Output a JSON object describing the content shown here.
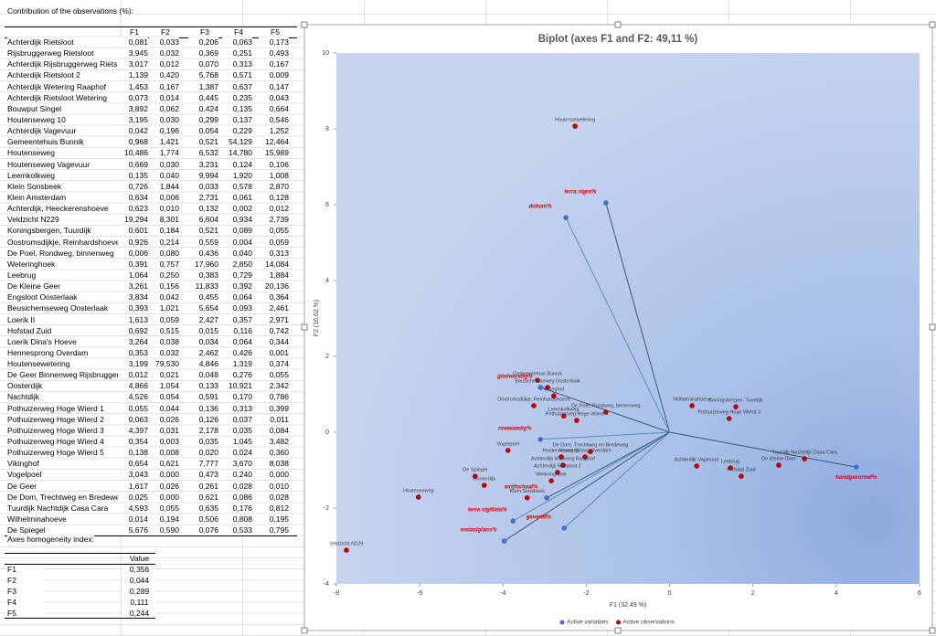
{
  "sheet": {
    "title": "Contribution of the observations (%):",
    "headers": [
      "F1",
      "F2",
      "F3",
      "F4",
      "F5"
    ],
    "rows": [
      [
        "Achterdijk Rietsloot",
        "0,081",
        "0,033",
        "0,206",
        "0,063",
        "0,173"
      ],
      [
        "Rijsbruggerweg Rietsloot",
        "3,945",
        "0,032",
        "0,369",
        "0,251",
        "0,493"
      ],
      [
        "Achterdijk Rijsbruggerweg Rietsl",
        "3,017",
        "0,012",
        "0,070",
        "0,313",
        "0,167"
      ],
      [
        "Achterdijk Rietsloot 2",
        "1,139",
        "0,420",
        "5,768",
        "0,571",
        "0,009"
      ],
      [
        "Achterdijk Wetering Raaphof",
        "1,453",
        "0,167",
        "1,387",
        "0,637",
        "0,147"
      ],
      [
        "Achterdijk Rietsloot Wetering",
        "0,073",
        "0,014",
        "0,445",
        "0,235",
        "0,043"
      ],
      [
        "Bouwput Singel",
        "3,892",
        "0,062",
        "0,424",
        "0,135",
        "0,664"
      ],
      [
        "Houtenseweg 10",
        "3,195",
        "0,030",
        "0,299",
        "0,137",
        "0,546"
      ],
      [
        "Achterdijk Vagevuur",
        "0,042",
        "0,196",
        "0,054",
        "0,229",
        "1,252"
      ],
      [
        "Gemeentehuis Bunnik",
        "0,968",
        "1,421",
        "0,521",
        "54,129",
        "12,464"
      ],
      [
        "Houtenseweg",
        "10,486",
        "1,774",
        "6,532",
        "14,780",
        "15,989"
      ],
      [
        "Houtenseweg Vagevuur",
        "0,669",
        "0,030",
        "3,231",
        "0,124",
        "0,106"
      ],
      [
        "Leemkolkweg",
        "0,135",
        "0,040",
        "9,994",
        "1,920",
        "1,008"
      ],
      [
        "Klein Sonsbeek",
        "0,726",
        "1,844",
        "0,033",
        "0,578",
        "2,870"
      ],
      [
        "Klein Amsterdam",
        "0,634",
        "0,006",
        "2,731",
        "0,061",
        "0,128"
      ],
      [
        "Achterdijk, Heeckerenshoeve",
        "0,623",
        "0,010",
        "0,132",
        "0,002",
        "0,012"
      ],
      [
        "Veldzicht  N229",
        "19,294",
        "8,301",
        "6,604",
        "0,934",
        "2,739"
      ],
      [
        "Koningsbergen, Tuurdijk",
        "0,601",
        "0,184",
        "0,521",
        "0,089",
        "0,055"
      ],
      [
        "Oostromsdijkje, Reinhardshoeve",
        "0,926",
        "0,214",
        "0,559",
        "0,004",
        "0,059"
      ],
      [
        "De Poel, Rondweg, binnenweg",
        "0,006",
        "0,080",
        "0,436",
        "0,040",
        "0,313"
      ],
      [
        "Weteringhoek",
        "0,391",
        "0,757",
        "17,960",
        "2,850",
        "14,084"
      ],
      [
        "Leebrug",
        "1,064",
        "0,250",
        "0,383",
        "0,729",
        "1,884"
      ],
      [
        "De Kleine Geer",
        "3,261",
        "0,156",
        "11,833",
        "0,392",
        "20,136"
      ],
      [
        "Engsloot Oosterlaak",
        "3,834",
        "0,042",
        "0,455",
        "0,064",
        "0,364"
      ],
      [
        "Beusichemseweg Oosterlaak",
        "0,393",
        "1,021",
        "5,654",
        "0,093",
        "2,461"
      ],
      [
        "Loerik II",
        "1,613",
        "0,059",
        "2,427",
        "0,357",
        "2,971"
      ],
      [
        "Hofstad Zuid",
        "0,692",
        "0,515",
        "0,015",
        "0,116",
        "0,742"
      ],
      [
        "Loerik Dina's Hoeve",
        "3,264",
        "0,038",
        "0,034",
        "0,064",
        "0,344"
      ],
      [
        "Hennesprong Overdam",
        "0,353",
        "0,032",
        "2,462",
        "0,426",
        "0,001"
      ],
      [
        "Houtensewetering",
        "3,199",
        "79,530",
        "4,846",
        "1,319",
        "0,374"
      ],
      [
        "De Geer Binnenweg Rijsbruggerw",
        "0,012",
        "0,021",
        "0,048",
        "0,276",
        "0,055"
      ],
      [
        "Oosterdijk",
        "4,866",
        "1,054",
        "0,133",
        "10,921",
        "2,342"
      ],
      [
        "Nachtdijk",
        "4,526",
        "0,054",
        "0,591",
        "0,170",
        "0,786"
      ],
      [
        "Pothuizerweg Hoge Wierd 1",
        "0,055",
        "0,044",
        "0,136",
        "0,313",
        "0,399"
      ],
      [
        "Pothuizerweg Hoge Wierd 2",
        "0,063",
        "0,026",
        "0,126",
        "0,037",
        "0,011"
      ],
      [
        "Pothuizerweg Hoge Wierd 3",
        "4,397",
        "0,031",
        "2,178",
        "0,035",
        "0,084"
      ],
      [
        "Pothuizerweg Hoge Wierd 4",
        "0,354",
        "0,003",
        "0,035",
        "1,045",
        "3,482"
      ],
      [
        "Pothuizerweg Hoge Wierd 5",
        "0,138",
        "0,008",
        "0,020",
        "0,024",
        "0,360"
      ],
      [
        "Vikinghof",
        "0,654",
        "0,621",
        "7,777",
        "3,670",
        "8,038"
      ],
      [
        "Vogelpoel",
        "3,043",
        "0,000",
        "0,473",
        "0,240",
        "0,000"
      ],
      [
        "De Geer",
        "1,617",
        "0,026",
        "0,261",
        "0,028",
        "0,010"
      ],
      [
        "De Dom, Trechtweg en Bredeweg",
        "0,025",
        "0,000",
        "0,621",
        "0,086",
        "0,028"
      ],
      [
        "Tuurdijk Nachtdijk Casa Cara",
        "4,593",
        "0,055",
        "0,635",
        "0,176",
        "0,812"
      ],
      [
        "Wilhelminahoeve",
        "0,014",
        "0,194",
        "0,506",
        "0,808",
        "0,195"
      ],
      [
        "De Spiegel",
        "5,676",
        "0,590",
        "0,076",
        "0,533",
        "0,795"
      ]
    ],
    "homogeneity": {
      "title": "Axes homogeneity index:",
      "header": "Value",
      "rows": [
        [
          "F1",
          "0,356"
        ],
        [
          "F2",
          "0,044"
        ],
        [
          "F3",
          "0,289"
        ],
        [
          "F4",
          "0,111"
        ],
        [
          "F5",
          "0,244"
        ]
      ]
    }
  },
  "chart_data": {
    "type": "biplot",
    "title": "Biplot (axes F1 and F2: 49,11 %)",
    "x_label": "F1 (32,49 %)",
    "y_label": "F2 (16,62 %)",
    "xlim": [
      -8,
      6
    ],
    "ylim": [
      -4,
      10
    ],
    "xticks": [
      -8,
      -6,
      -4,
      -2,
      0,
      2,
      4,
      6
    ],
    "yticks": [
      -4,
      -2,
      0,
      2,
      4,
      6,
      8,
      10
    ],
    "series": [
      {
        "name": "Active variables",
        "color": "#4472c4",
        "label_color": "#e00000",
        "points": [
          {
            "name": "terra nigra%",
            "x": -1.53,
            "y": 6.05
          },
          {
            "name": "dolium%",
            "x": -2.49,
            "y": 5.66
          },
          {
            "name": "gladwandig%",
            "x": -3.1,
            "y": 1.18
          },
          {
            "name": "ruwwandig%",
            "x": -3.1,
            "y": -0.19
          },
          {
            "name": "wrijfschaal%",
            "x": -2.95,
            "y": -1.73
          },
          {
            "name": "terra sigillata%",
            "x": -3.76,
            "y": -2.34
          },
          {
            "name": "metaalglans%",
            "x": -3.97,
            "y": -2.87
          },
          {
            "name": "geverfd%",
            "x": -2.53,
            "y": -2.53
          },
          {
            "name": "handgevormd%",
            "x": 4.48,
            "y": -0.92
          }
        ]
      },
      {
        "name": "Active observations",
        "color": "#c00000",
        "label_color": "#404040",
        "points": [
          {
            "name": "Houtensewetering",
            "x": -2.27,
            "y": 8.07
          },
          {
            "name": "Gemeentehuis Bunnik",
            "x": -3.17,
            "y": 1.37
          },
          {
            "name": "Beusichemseweg Oosterlaak",
            "x": -2.93,
            "y": 1.18
          },
          {
            "name": "Vikinghof",
            "x": -2.78,
            "y": 0.96
          },
          {
            "name": "Oostromsdijkje, Reinhardshoeve",
            "x": -3.26,
            "y": 0.7
          },
          {
            "name": "De Poel, Rondweg, binnenweg",
            "x": -1.53,
            "y": 0.53
          },
          {
            "name": "Leemkolkweg",
            "x": -2.54,
            "y": 0.43
          },
          {
            "name": "Pothuizerweg Hoge Wierd 4",
            "x": -2.23,
            "y": 0.31
          },
          {
            "name": "Wilhelminahoeve",
            "x": 0.54,
            "y": 0.7
          },
          {
            "name": "Koningsbergen, Tuurdijk",
            "x": 1.59,
            "y": 0.67
          },
          {
            "name": "Pothuizerweg Hoge Wierd 3",
            "x": 1.43,
            "y": 0.36
          },
          {
            "name": "Vogelpoel",
            "x": -3.88,
            "y": -0.48
          },
          {
            "name": "De Dom, Trechtweg en Bredeweg",
            "x": -1.9,
            "y": -0.51
          },
          {
            "name": "Houtenseweg 10",
            "x": -2.6,
            "y": -0.65
          },
          {
            "name": "Hennesprong Overdam",
            "x": -2.03,
            "y": -0.65
          },
          {
            "name": "Achterdijk Wetering Raaphof",
            "x": -2.56,
            "y": -0.87
          },
          {
            "name": "Achterdijk Rietsloot 2",
            "x": -2.69,
            "y": -1.06
          },
          {
            "name": "Weteringhoek",
            "x": -2.84,
            "y": -1.28
          },
          {
            "name": "De Spiegel",
            "x": -4.67,
            "y": -1.16
          },
          {
            "name": "Oosterdijk",
            "x": -4.45,
            "y": -1.4
          },
          {
            "name": "Klein Sonsbeek",
            "x": -3.42,
            "y": -1.73
          },
          {
            "name": "Houtenseweg",
            "x": -6.03,
            "y": -1.71
          },
          {
            "name": "Veldzicht  N229",
            "x": -7.76,
            "y": -3.11
          },
          {
            "name": "Achterdijk Vagevuur",
            "x": 0.65,
            "y": -0.89
          },
          {
            "name": "Leebrug",
            "x": 1.46,
            "y": -0.94
          },
          {
            "name": "Hofstad Zuid",
            "x": 1.72,
            "y": -1.16
          },
          {
            "name": "De Kleine Geer",
            "x": 2.62,
            "y": -0.87
          },
          {
            "name": "Tuurdijk Nachtdijk Casa Cara",
            "x": 3.24,
            "y": -0.7
          }
        ]
      }
    ]
  }
}
